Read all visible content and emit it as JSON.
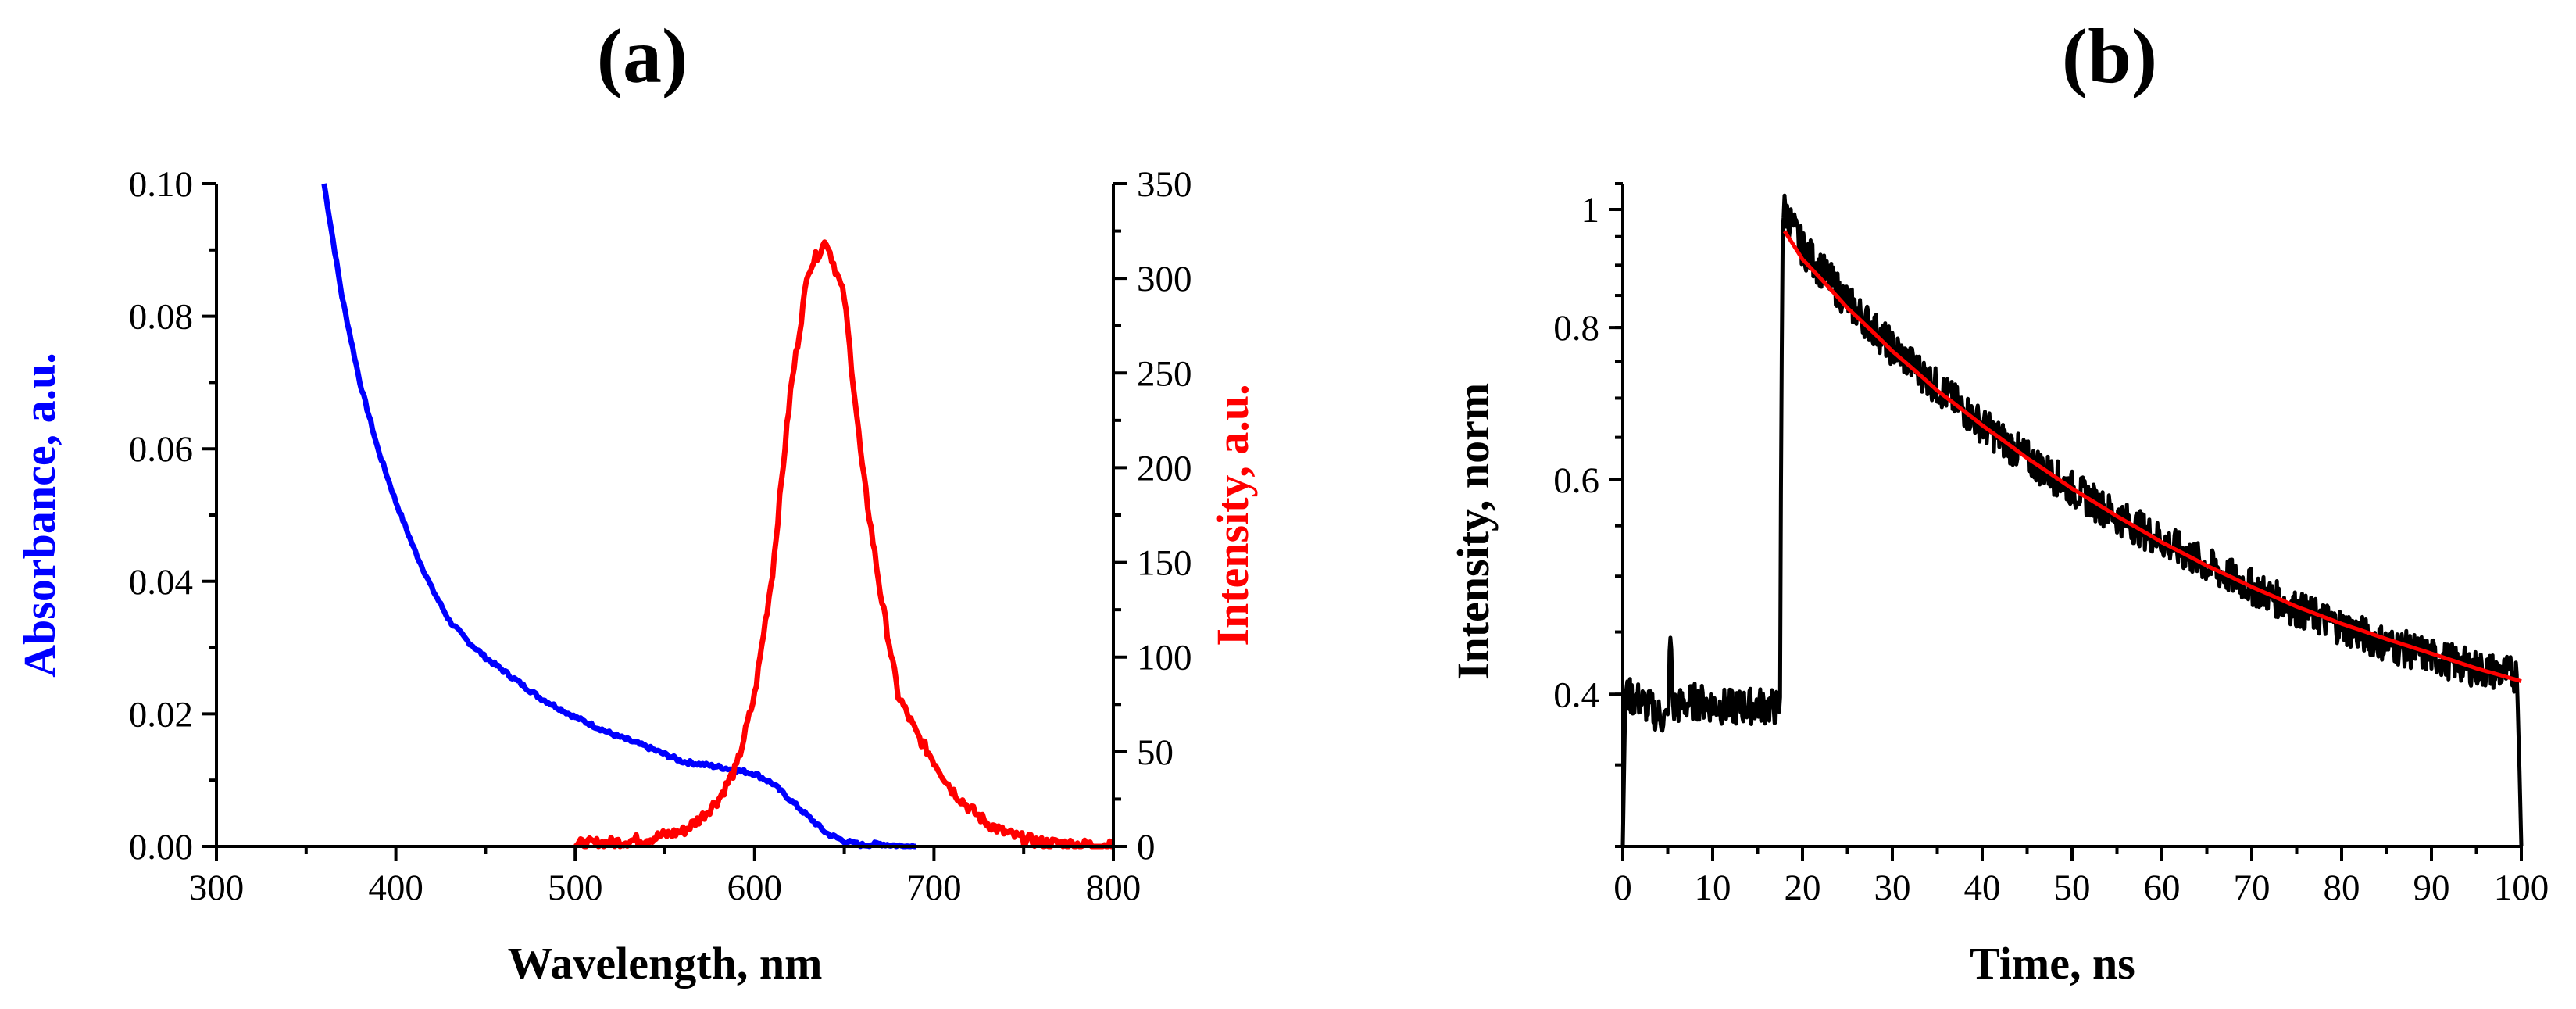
{
  "figure": {
    "panel_a_label": "(a)",
    "panel_b_label": "(b)"
  },
  "colors": {
    "absorbance": "#0000ff",
    "emission": "#ff0000",
    "decay": "#000000",
    "fit": "#ff0000",
    "axis": "#000000"
  },
  "chart_data": [
    {
      "id": "a",
      "type": "line",
      "title": "(a)",
      "xlabel": "Wavelength, nm",
      "ylabel_left": "Absorbance, a.u.",
      "ylabel_right": "Intensity, a.u.",
      "xlim": [
        300,
        800
      ],
      "ylim_left": [
        0,
        0.1
      ],
      "ylim_right": [
        0,
        350
      ],
      "x_ticks": [
        "300",
        "400",
        "500",
        "600",
        "700",
        "800"
      ],
      "y_left_ticks": [
        "0.00",
        "0.02",
        "0.04",
        "0.06",
        "0.08",
        "0.10"
      ],
      "y_right_ticks": [
        "0",
        "50",
        "100",
        "150",
        "200",
        "250",
        "300",
        "350"
      ],
      "series": [
        {
          "name": "Absorbance",
          "axis": "left",
          "color": "#0000ff",
          "x": [
            360,
            370,
            380,
            390,
            400,
            410,
            420,
            430,
            440,
            450,
            460,
            470,
            480,
            490,
            500,
            520,
            540,
            560,
            580,
            600,
            610,
            620,
            630,
            640,
            650,
            660,
            670,
            680,
            690
          ],
          "y": [
            0.1,
            0.083,
            0.07,
            0.06,
            0.052,
            0.045,
            0.039,
            0.034,
            0.031,
            0.0285,
            0.0265,
            0.0245,
            0.0225,
            0.021,
            0.0195,
            0.017,
            0.015,
            0.0128,
            0.012,
            0.011,
            0.0095,
            0.007,
            0.0045,
            0.002,
            0.0008,
            0.0002,
            0.0004,
            0.0001,
            0.0
          ]
        },
        {
          "name": "Emission intensity",
          "axis": "right",
          "color": "#ff0000",
          "x": [
            500,
            520,
            540,
            560,
            570,
            580,
            590,
            600,
            610,
            620,
            630,
            640,
            650,
            660,
            670,
            680,
            690,
            700,
            710,
            720,
            730,
            740,
            750,
            760,
            780,
            800
          ],
          "y": [
            1,
            2,
            4,
            8,
            15,
            25,
            42,
            80,
            145,
            240,
            305,
            320,
            290,
            200,
            135,
            80,
            60,
            45,
            30,
            20,
            12,
            7,
            4,
            2,
            1,
            0
          ]
        }
      ]
    },
    {
      "id": "b",
      "type": "line",
      "title": "(b)",
      "xlabel": "Time, ns",
      "ylabel": "Intensity, norm",
      "y_scale": "log",
      "xlim": [
        0,
        100
      ],
      "ylim": [
        0.3,
        1.05
      ],
      "x_ticks": [
        "0",
        "10",
        "20",
        "30",
        "40",
        "50",
        "60",
        "70",
        "80",
        "90",
        "100"
      ],
      "y_ticks": [
        "0.4",
        "0.6",
        "0.8",
        "1"
      ],
      "series": [
        {
          "name": "Decay",
          "color": "#000000",
          "x": [
            0,
            0.3,
            2,
            5,
            5.3,
            5.6,
            8,
            12,
            15,
            17.5,
            17.8,
            18,
            20,
            25,
            30,
            35,
            40,
            45,
            50,
            55,
            60,
            65,
            70,
            75,
            80,
            85,
            90,
            95,
            99.5,
            100
          ],
          "y": [
            0.3,
            0.4,
            0.395,
            0.38,
            0.445,
            0.39,
            0.395,
            0.39,
            0.392,
            0.39,
            0.98,
            1.0,
            0.93,
            0.84,
            0.77,
            0.715,
            0.665,
            0.625,
            0.59,
            0.56,
            0.535,
            0.51,
            0.49,
            0.47,
            0.455,
            0.44,
            0.43,
            0.42,
            0.415,
            0.3
          ]
        },
        {
          "name": "Fit",
          "color": "#ff0000",
          "x": [
            18,
            20,
            25,
            30,
            35,
            40,
            45,
            50,
            55,
            60,
            65,
            70,
            75,
            80,
            85,
            90,
            95,
            100
          ],
          "y": [
            0.96,
            0.91,
            0.83,
            0.765,
            0.71,
            0.665,
            0.625,
            0.59,
            0.56,
            0.533,
            0.51,
            0.49,
            0.472,
            0.457,
            0.444,
            0.432,
            0.42,
            0.41
          ]
        }
      ]
    }
  ]
}
